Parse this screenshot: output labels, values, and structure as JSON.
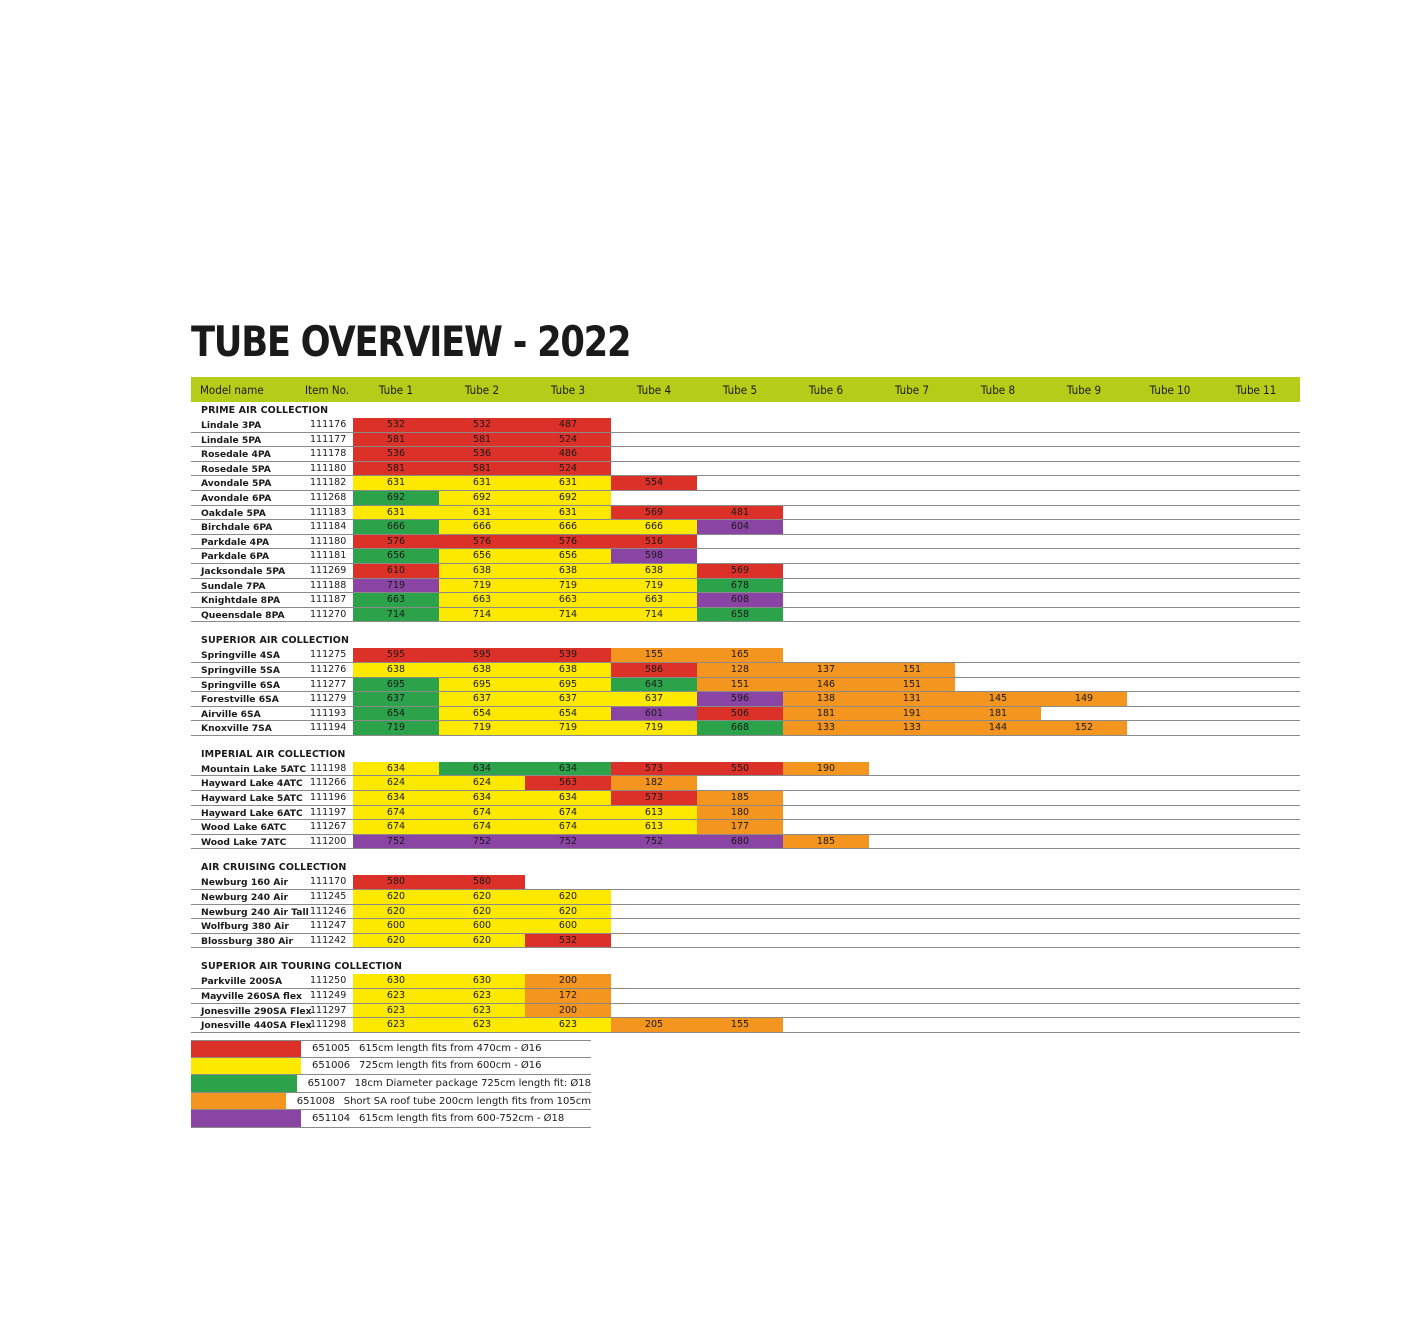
{
  "title": "TUBE OVERVIEW - 2022",
  "colors": {
    "red": "#dc3128",
    "yellow": "#fde900",
    "green": "#2ca24b",
    "orange": "#f4951f",
    "purple": "#8a44a3",
    "header": "#b5cc18"
  },
  "header": {
    "model": "Model name",
    "item": "Item No.",
    "tubes": [
      "Tube 1",
      "Tube 2",
      "Tube 3",
      "Tube 4",
      "Tube 5",
      "Tube 6",
      "Tube 7",
      "Tube 8",
      "Tube 9",
      "Tube 10",
      "Tube 11"
    ]
  },
  "sections": [
    {
      "title": "PRIME AIR COLLECTION",
      "rows": [
        {
          "name": "Lindale 3PA",
          "item": "111176",
          "cells": [
            [
              "532",
              "red"
            ],
            [
              "532",
              "red"
            ],
            [
              "487",
              "red"
            ]
          ]
        },
        {
          "name": "Lindale 5PA",
          "item": "111177",
          "cells": [
            [
              "581",
              "red"
            ],
            [
              "581",
              "red"
            ],
            [
              "524",
              "red"
            ]
          ]
        },
        {
          "name": "Rosedale 4PA",
          "item": "111178",
          "cells": [
            [
              "536",
              "red"
            ],
            [
              "536",
              "red"
            ],
            [
              "486",
              "red"
            ]
          ]
        },
        {
          "name": "Rosedale 5PA",
          "item": "111180",
          "cells": [
            [
              "581",
              "red"
            ],
            [
              "581",
              "red"
            ],
            [
              "524",
              "red"
            ]
          ]
        },
        {
          "name": "Avondale 5PA",
          "item": "111182",
          "cells": [
            [
              "631",
              "yellow"
            ],
            [
              "631",
              "yellow"
            ],
            [
              "631",
              "yellow"
            ],
            [
              "554",
              "red"
            ]
          ]
        },
        {
          "name": "Avondale 6PA",
          "item": "111268",
          "cells": [
            [
              "692",
              "green"
            ],
            [
              "692",
              "yellow"
            ],
            [
              "692",
              "yellow"
            ]
          ]
        },
        {
          "name": "Oakdale 5PA",
          "item": "111183",
          "cells": [
            [
              "631",
              "yellow"
            ],
            [
              "631",
              "yellow"
            ],
            [
              "631",
              "yellow"
            ],
            [
              "569",
              "red"
            ],
            [
              "481",
              "red"
            ]
          ]
        },
        {
          "name": "Birchdale 6PA",
          "item": "111184",
          "cells": [
            [
              "666",
              "green"
            ],
            [
              "666",
              "yellow"
            ],
            [
              "666",
              "yellow"
            ],
            [
              "666",
              "yellow"
            ],
            [
              "604",
              "purple"
            ]
          ]
        },
        {
          "name": "Parkdale 4PA",
          "item": "111180",
          "cells": [
            [
              "576",
              "red"
            ],
            [
              "576",
              "red"
            ],
            [
              "576",
              "red"
            ],
            [
              "516",
              "red"
            ]
          ]
        },
        {
          "name": "Parkdale 6PA",
          "item": "111181",
          "cells": [
            [
              "656",
              "green"
            ],
            [
              "656",
              "yellow"
            ],
            [
              "656",
              "yellow"
            ],
            [
              "598",
              "purple"
            ]
          ]
        },
        {
          "name": "Jacksondale 5PA",
          "item": "111269",
          "cells": [
            [
              "610",
              "red"
            ],
            [
              "638",
              "yellow"
            ],
            [
              "638",
              "yellow"
            ],
            [
              "638",
              "yellow"
            ],
            [
              "569",
              "red"
            ]
          ]
        },
        {
          "name": "Sundale 7PA",
          "item": "111188",
          "cells": [
            [
              "719",
              "purple"
            ],
            [
              "719",
              "yellow"
            ],
            [
              "719",
              "yellow"
            ],
            [
              "719",
              "yellow"
            ],
            [
              "678",
              "green"
            ]
          ]
        },
        {
          "name": "Knightdale 8PA",
          "item": "111187",
          "cells": [
            [
              "663",
              "green"
            ],
            [
              "663",
              "yellow"
            ],
            [
              "663",
              "yellow"
            ],
            [
              "663",
              "yellow"
            ],
            [
              "608",
              "purple"
            ]
          ]
        },
        {
          "name": "Queensdale 8PA",
          "item": "111270",
          "cells": [
            [
              "714",
              "green"
            ],
            [
              "714",
              "yellow"
            ],
            [
              "714",
              "yellow"
            ],
            [
              "714",
              "yellow"
            ],
            [
              "658",
              "green"
            ]
          ]
        }
      ]
    },
    {
      "title": "SUPERIOR AIR COLLECTION",
      "rows": [
        {
          "name": "Springville 4SA",
          "item": "111275",
          "cells": [
            [
              "595",
              "red"
            ],
            [
              "595",
              "red"
            ],
            [
              "539",
              "red"
            ],
            [
              "155",
              "orange"
            ],
            [
              "165",
              "orange"
            ]
          ]
        },
        {
          "name": "Springville 5SA",
          "item": "111276",
          "cells": [
            [
              "638",
              "yellow"
            ],
            [
              "638",
              "yellow"
            ],
            [
              "638",
              "yellow"
            ],
            [
              "586",
              "red"
            ],
            [
              "128",
              "orange"
            ],
            [
              "137",
              "orange"
            ],
            [
              "151",
              "orange"
            ]
          ]
        },
        {
          "name": "Springville 6SA",
          "item": "111277",
          "cells": [
            [
              "695",
              "green"
            ],
            [
              "695",
              "yellow"
            ],
            [
              "695",
              "yellow"
            ],
            [
              "643",
              "green"
            ],
            [
              "151",
              "orange"
            ],
            [
              "146",
              "orange"
            ],
            [
              "151",
              "orange"
            ]
          ]
        },
        {
          "name": "Forestville 6SA",
          "item": "111279",
          "cells": [
            [
              "637",
              "green"
            ],
            [
              "637",
              "yellow"
            ],
            [
              "637",
              "yellow"
            ],
            [
              "637",
              "yellow"
            ],
            [
              "596",
              "purple"
            ],
            [
              "138",
              "orange"
            ],
            [
              "131",
              "orange"
            ],
            [
              "145",
              "orange"
            ],
            [
              "149",
              "orange"
            ]
          ]
        },
        {
          "name": "Airville 6SA",
          "item": "111193",
          "cells": [
            [
              "654",
              "green"
            ],
            [
              "654",
              "yellow"
            ],
            [
              "654",
              "yellow"
            ],
            [
              "601",
              "purple"
            ],
            [
              "506",
              "red"
            ],
            [
              "181",
              "orange"
            ],
            [
              "191",
              "orange"
            ],
            [
              "181",
              "orange"
            ]
          ]
        },
        {
          "name": "Knoxville 7SA",
          "item": "111194",
          "cells": [
            [
              "719",
              "green"
            ],
            [
              "719",
              "yellow"
            ],
            [
              "719",
              "yellow"
            ],
            [
              "719",
              "yellow"
            ],
            [
              "668",
              "green"
            ],
            [
              "133",
              "orange"
            ],
            [
              "133",
              "orange"
            ],
            [
              "144",
              "orange"
            ],
            [
              "152",
              "orange"
            ]
          ]
        }
      ]
    },
    {
      "title": "IMPERIAL AIR COLLECTION",
      "rows": [
        {
          "name": "Mountain Lake 5ATC",
          "item": "111198",
          "cells": [
            [
              "634",
              "yellow"
            ],
            [
              "634",
              "green"
            ],
            [
              "634",
              "green"
            ],
            [
              "573",
              "red"
            ],
            [
              "550",
              "red"
            ],
            [
              "190",
              "orange"
            ]
          ]
        },
        {
          "name": "Hayward Lake 4ATC",
          "item": "111266",
          "cells": [
            [
              "624",
              "yellow"
            ],
            [
              "624",
              "yellow"
            ],
            [
              "563",
              "red"
            ],
            [
              "182",
              "orange"
            ]
          ]
        },
        {
          "name": "Hayward Lake 5ATC",
          "item": "111196",
          "cells": [
            [
              "634",
              "yellow"
            ],
            [
              "634",
              "yellow"
            ],
            [
              "634",
              "yellow"
            ],
            [
              "573",
              "red"
            ],
            [
              "185",
              "orange"
            ]
          ]
        },
        {
          "name": "Hayward Lake 6ATC",
          "item": "111197",
          "cells": [
            [
              "674",
              "yellow"
            ],
            [
              "674",
              "yellow"
            ],
            [
              "674",
              "yellow"
            ],
            [
              "613",
              "yellow"
            ],
            [
              "180",
              "orange"
            ]
          ]
        },
        {
          "name": "Wood Lake 6ATC",
          "item": "111267",
          "cells": [
            [
              "674",
              "yellow"
            ],
            [
              "674",
              "yellow"
            ],
            [
              "674",
              "yellow"
            ],
            [
              "613",
              "yellow"
            ],
            [
              "177",
              "orange"
            ]
          ]
        },
        {
          "name": "Wood Lake 7ATC",
          "item": "111200",
          "cells": [
            [
              "752",
              "purple"
            ],
            [
              "752",
              "purple"
            ],
            [
              "752",
              "purple"
            ],
            [
              "752",
              "purple"
            ],
            [
              "680",
              "purple"
            ],
            [
              "185",
              "orange"
            ]
          ]
        }
      ]
    },
    {
      "title": "AIR CRUISING COLLECTION",
      "rows": [
        {
          "name": "Newburg 160 Air",
          "item": "111170",
          "cells": [
            [
              "580",
              "red"
            ],
            [
              "580",
              "red"
            ]
          ]
        },
        {
          "name": "Newburg 240 Air",
          "item": "111245",
          "cells": [
            [
              "620",
              "yellow"
            ],
            [
              "620",
              "yellow"
            ],
            [
              "620",
              "yellow"
            ]
          ]
        },
        {
          "name": "Newburg 240 Air Tall",
          "item": "111246",
          "cells": [
            [
              "620",
              "yellow"
            ],
            [
              "620",
              "yellow"
            ],
            [
              "620",
              "yellow"
            ]
          ]
        },
        {
          "name": "Wolfburg 380 Air",
          "item": "111247",
          "cells": [
            [
              "600",
              "yellow"
            ],
            [
              "600",
              "yellow"
            ],
            [
              "600",
              "yellow"
            ]
          ]
        },
        {
          "name": "Blossburg 380 Air",
          "item": "111242",
          "cells": [
            [
              "620",
              "yellow"
            ],
            [
              "620",
              "yellow"
            ],
            [
              "532",
              "red"
            ]
          ]
        }
      ]
    },
    {
      "title": "SUPERIOR AIR TOURING COLLECTION",
      "rows": [
        {
          "name": "Parkville 200SA",
          "item": "111250",
          "cells": [
            [
              "630",
              "yellow"
            ],
            [
              "630",
              "yellow"
            ],
            [
              "200",
              "orange"
            ]
          ]
        },
        {
          "name": "Mayville 260SA flex",
          "item": "111249",
          "cells": [
            [
              "623",
              "yellow"
            ],
            [
              "623",
              "yellow"
            ],
            [
              "172",
              "orange"
            ]
          ]
        },
        {
          "name": "Jonesville 290SA Flex",
          "item": "111297",
          "cells": [
            [
              "623",
              "yellow"
            ],
            [
              "623",
              "yellow"
            ],
            [
              "200",
              "orange"
            ]
          ]
        },
        {
          "name": "Jonesville 440SA Flex",
          "item": "111298",
          "cells": [
            [
              "623",
              "yellow"
            ],
            [
              "623",
              "yellow"
            ],
            [
              "623",
              "yellow"
            ],
            [
              "205",
              "orange"
            ],
            [
              "155",
              "orange"
            ]
          ]
        }
      ]
    }
  ],
  "legend": [
    {
      "color": "red",
      "code": "651005",
      "desc": "615cm length fits from 470cm - Ø16"
    },
    {
      "color": "yellow",
      "code": "651006",
      "desc": "725cm length fits from 600cm - Ø16"
    },
    {
      "color": "green",
      "code": "651007",
      "desc": "18cm Diameter package 725cm length fit: Ø18"
    },
    {
      "color": "orange",
      "code": "651008",
      "desc": "Short SA roof tube 200cm length fits from 105cm"
    },
    {
      "color": "purple",
      "code": "651104",
      "desc": "615cm length fits from 600-752cm - Ø18"
    }
  ]
}
